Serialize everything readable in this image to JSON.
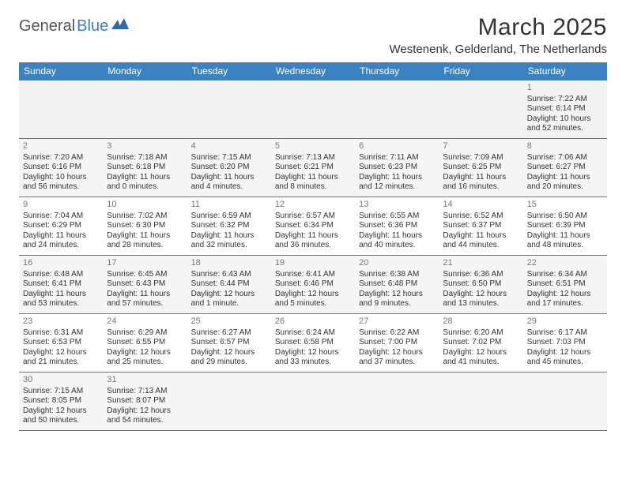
{
  "logo": {
    "general": "General",
    "blue": "Blue"
  },
  "title": "March 2025",
  "location": "Westenenk, Gelderland, The Netherlands",
  "weekdays": [
    "Sunday",
    "Monday",
    "Tuesday",
    "Wednesday",
    "Thursday",
    "Friday",
    "Saturday"
  ],
  "colors": {
    "header_bg": "#3b83c0",
    "header_text": "#ffffff",
    "border": "#3b83c0",
    "alt_row": "#f5f5f5",
    "daynum": "#777777",
    "text": "#333333"
  },
  "rows": [
    [
      null,
      null,
      null,
      null,
      null,
      null,
      {
        "n": "1",
        "sr": "Sunrise: 7:22 AM",
        "ss": "Sunset: 6:14 PM",
        "d1": "Daylight: 10 hours",
        "d2": "and 52 minutes."
      }
    ],
    [
      {
        "n": "2",
        "sr": "Sunrise: 7:20 AM",
        "ss": "Sunset: 6:16 PM",
        "d1": "Daylight: 10 hours",
        "d2": "and 56 minutes."
      },
      {
        "n": "3",
        "sr": "Sunrise: 7:18 AM",
        "ss": "Sunset: 6:18 PM",
        "d1": "Daylight: 11 hours",
        "d2": "and 0 minutes."
      },
      {
        "n": "4",
        "sr": "Sunrise: 7:15 AM",
        "ss": "Sunset: 6:20 PM",
        "d1": "Daylight: 11 hours",
        "d2": "and 4 minutes."
      },
      {
        "n": "5",
        "sr": "Sunrise: 7:13 AM",
        "ss": "Sunset: 6:21 PM",
        "d1": "Daylight: 11 hours",
        "d2": "and 8 minutes."
      },
      {
        "n": "6",
        "sr": "Sunrise: 7:11 AM",
        "ss": "Sunset: 6:23 PM",
        "d1": "Daylight: 11 hours",
        "d2": "and 12 minutes."
      },
      {
        "n": "7",
        "sr": "Sunrise: 7:09 AM",
        "ss": "Sunset: 6:25 PM",
        "d1": "Daylight: 11 hours",
        "d2": "and 16 minutes."
      },
      {
        "n": "8",
        "sr": "Sunrise: 7:06 AM",
        "ss": "Sunset: 6:27 PM",
        "d1": "Daylight: 11 hours",
        "d2": "and 20 minutes."
      }
    ],
    [
      {
        "n": "9",
        "sr": "Sunrise: 7:04 AM",
        "ss": "Sunset: 6:29 PM",
        "d1": "Daylight: 11 hours",
        "d2": "and 24 minutes."
      },
      {
        "n": "10",
        "sr": "Sunrise: 7:02 AM",
        "ss": "Sunset: 6:30 PM",
        "d1": "Daylight: 11 hours",
        "d2": "and 28 minutes."
      },
      {
        "n": "11",
        "sr": "Sunrise: 6:59 AM",
        "ss": "Sunset: 6:32 PM",
        "d1": "Daylight: 11 hours",
        "d2": "and 32 minutes."
      },
      {
        "n": "12",
        "sr": "Sunrise: 6:57 AM",
        "ss": "Sunset: 6:34 PM",
        "d1": "Daylight: 11 hours",
        "d2": "and 36 minutes."
      },
      {
        "n": "13",
        "sr": "Sunrise: 6:55 AM",
        "ss": "Sunset: 6:36 PM",
        "d1": "Daylight: 11 hours",
        "d2": "and 40 minutes."
      },
      {
        "n": "14",
        "sr": "Sunrise: 6:52 AM",
        "ss": "Sunset: 6:37 PM",
        "d1": "Daylight: 11 hours",
        "d2": "and 44 minutes."
      },
      {
        "n": "15",
        "sr": "Sunrise: 6:50 AM",
        "ss": "Sunset: 6:39 PM",
        "d1": "Daylight: 11 hours",
        "d2": "and 48 minutes."
      }
    ],
    [
      {
        "n": "16",
        "sr": "Sunrise: 6:48 AM",
        "ss": "Sunset: 6:41 PM",
        "d1": "Daylight: 11 hours",
        "d2": "and 53 minutes."
      },
      {
        "n": "17",
        "sr": "Sunrise: 6:45 AM",
        "ss": "Sunset: 6:43 PM",
        "d1": "Daylight: 11 hours",
        "d2": "and 57 minutes."
      },
      {
        "n": "18",
        "sr": "Sunrise: 6:43 AM",
        "ss": "Sunset: 6:44 PM",
        "d1": "Daylight: 12 hours",
        "d2": "and 1 minute."
      },
      {
        "n": "19",
        "sr": "Sunrise: 6:41 AM",
        "ss": "Sunset: 6:46 PM",
        "d1": "Daylight: 12 hours",
        "d2": "and 5 minutes."
      },
      {
        "n": "20",
        "sr": "Sunrise: 6:38 AM",
        "ss": "Sunset: 6:48 PM",
        "d1": "Daylight: 12 hours",
        "d2": "and 9 minutes."
      },
      {
        "n": "21",
        "sr": "Sunrise: 6:36 AM",
        "ss": "Sunset: 6:50 PM",
        "d1": "Daylight: 12 hours",
        "d2": "and 13 minutes."
      },
      {
        "n": "22",
        "sr": "Sunrise: 6:34 AM",
        "ss": "Sunset: 6:51 PM",
        "d1": "Daylight: 12 hours",
        "d2": "and 17 minutes."
      }
    ],
    [
      {
        "n": "23",
        "sr": "Sunrise: 6:31 AM",
        "ss": "Sunset: 6:53 PM",
        "d1": "Daylight: 12 hours",
        "d2": "and 21 minutes."
      },
      {
        "n": "24",
        "sr": "Sunrise: 6:29 AM",
        "ss": "Sunset: 6:55 PM",
        "d1": "Daylight: 12 hours",
        "d2": "and 25 minutes."
      },
      {
        "n": "25",
        "sr": "Sunrise: 6:27 AM",
        "ss": "Sunset: 6:57 PM",
        "d1": "Daylight: 12 hours",
        "d2": "and 29 minutes."
      },
      {
        "n": "26",
        "sr": "Sunrise: 6:24 AM",
        "ss": "Sunset: 6:58 PM",
        "d1": "Daylight: 12 hours",
        "d2": "and 33 minutes."
      },
      {
        "n": "27",
        "sr": "Sunrise: 6:22 AM",
        "ss": "Sunset: 7:00 PM",
        "d1": "Daylight: 12 hours",
        "d2": "and 37 minutes."
      },
      {
        "n": "28",
        "sr": "Sunrise: 6:20 AM",
        "ss": "Sunset: 7:02 PM",
        "d1": "Daylight: 12 hours",
        "d2": "and 41 minutes."
      },
      {
        "n": "29",
        "sr": "Sunrise: 6:17 AM",
        "ss": "Sunset: 7:03 PM",
        "d1": "Daylight: 12 hours",
        "d2": "and 45 minutes."
      }
    ],
    [
      {
        "n": "30",
        "sr": "Sunrise: 7:15 AM",
        "ss": "Sunset: 8:05 PM",
        "d1": "Daylight: 12 hours",
        "d2": "and 50 minutes."
      },
      {
        "n": "31",
        "sr": "Sunrise: 7:13 AM",
        "ss": "Sunset: 8:07 PM",
        "d1": "Daylight: 12 hours",
        "d2": "and 54 minutes."
      },
      null,
      null,
      null,
      null,
      null
    ]
  ]
}
